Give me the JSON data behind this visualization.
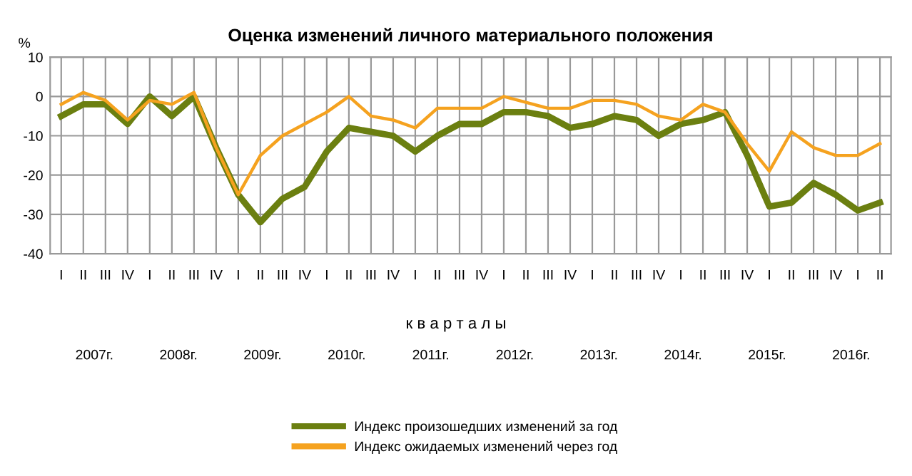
{
  "chart_data": {
    "type": "line",
    "title": "Оценка изменений личного материального положения",
    "ylabel": "%",
    "xlabel": "к в а р т а л ы",
    "categories": [
      "I",
      "II",
      "III",
      "IV",
      "I",
      "II",
      "III",
      "IV",
      "I",
      "II",
      "III",
      "IV",
      "I",
      "II",
      "III",
      "IV",
      "I",
      "II",
      "III",
      "IV",
      "I",
      "II",
      "III",
      "IV",
      "I",
      "II",
      "III",
      "IV",
      "I",
      "II",
      "III",
      "IV",
      "I",
      "II",
      "III",
      "IV",
      "I",
      "II"
    ],
    "series": [
      {
        "name": "Индекс произошедших изменений за год",
        "color": "#6b7f10",
        "values": [
          -5,
          -2,
          -2,
          -7,
          0,
          -5,
          0,
          -13,
          -25,
          -32,
          -26,
          -23,
          -14,
          -8,
          -9,
          -10,
          -14,
          -10,
          -7,
          -7,
          -4,
          -4,
          -5,
          -8,
          -7,
          -5,
          -6,
          -10,
          -7,
          -6,
          -4,
          -15,
          -28,
          -27,
          -22,
          -25,
          -29,
          -27
        ]
      },
      {
        "name": "Индекс ожидаемых изменений через год",
        "color": "#f5a21f",
        "values": [
          -2,
          1,
          -1,
          -6,
          -1,
          -2,
          1,
          -13,
          -25,
          -15,
          -10,
          -7,
          -4,
          0,
          -5,
          -6,
          -8,
          -3,
          -3,
          -3,
          0,
          -1.5,
          -3,
          -3,
          -1,
          -1,
          -2,
          -5,
          -6,
          -2,
          -4,
          -12,
          -19,
          -9,
          -13,
          -15,
          -15,
          -12
        ]
      }
    ],
    "annotations": [
      "2007г.",
      "2008г.",
      "2009г.",
      "2010г.",
      "2011г.",
      "2012г.",
      "2013г.",
      "2014г.",
      "2015г.",
      "2016г."
    ],
    "ylim": [
      -40,
      10
    ],
    "yticks": [
      -40,
      -30,
      -20,
      -10,
      0,
      10
    ],
    "grid": true,
    "legend": "bottom"
  }
}
